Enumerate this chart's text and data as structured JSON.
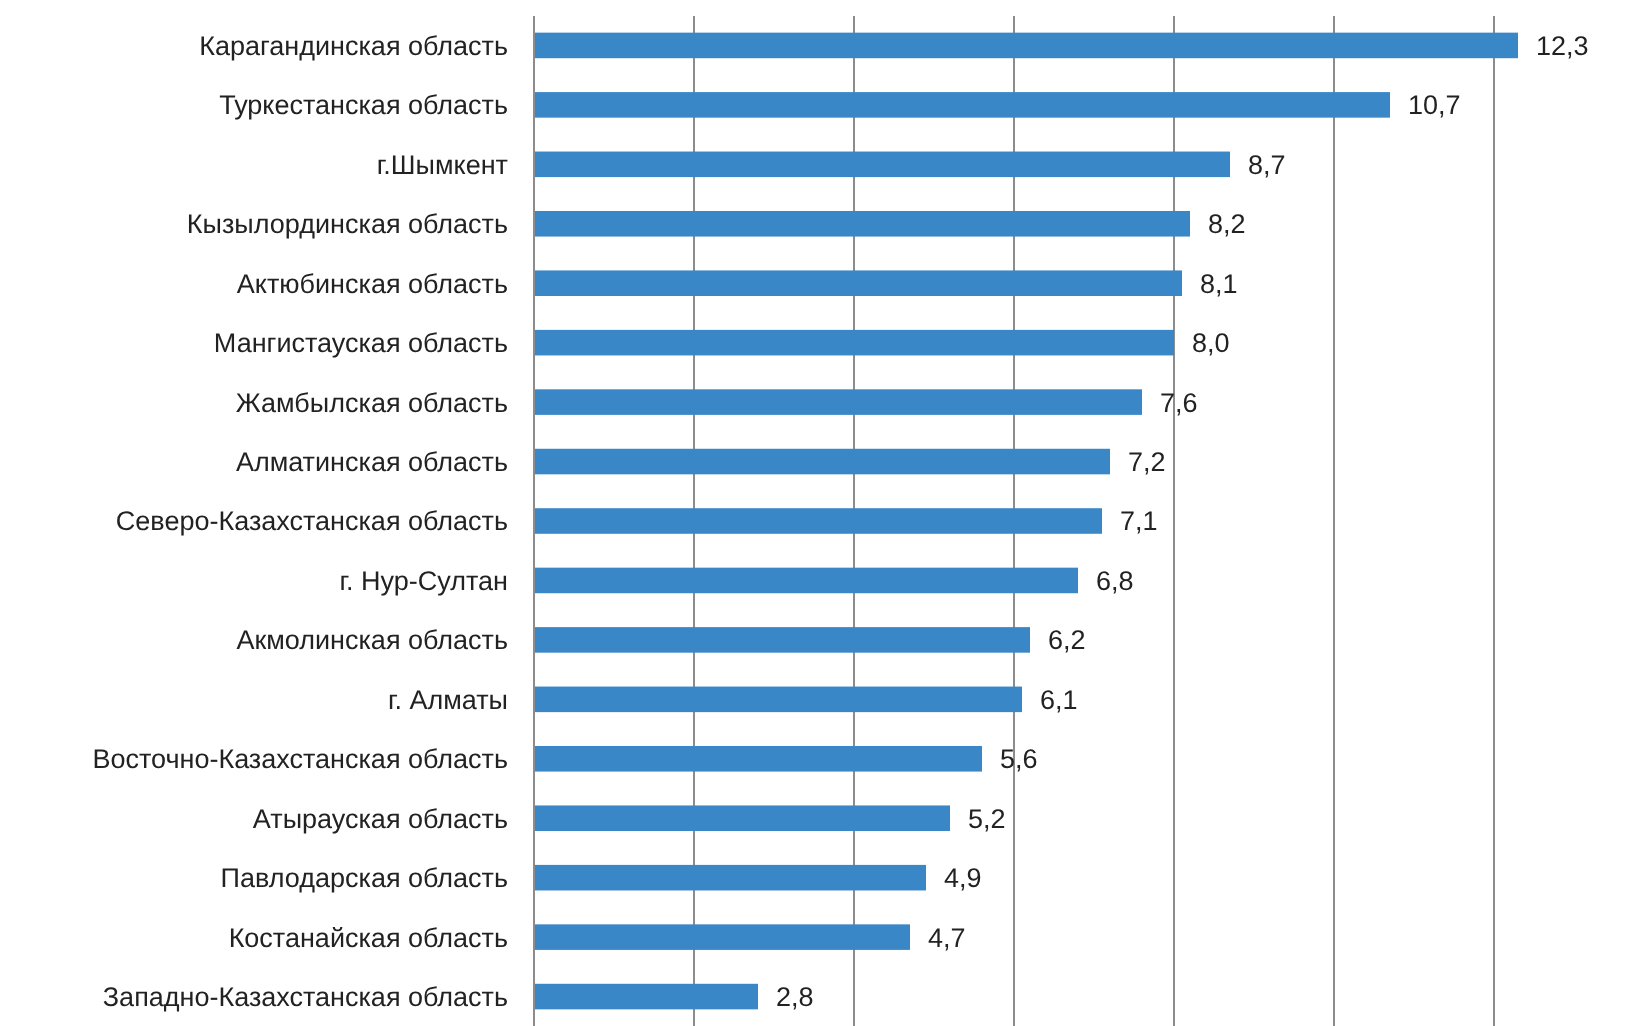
{
  "chart_data": {
    "type": "bar",
    "orientation": "horizontal",
    "categories": [
      "Карагандинская область",
      "Туркестанская область",
      "г.Шымкент",
      "Кызылординская область",
      "Актюбинская область",
      "Мангистауская область",
      "Жамбылская область",
      "Алматинская область",
      "Северо-Казахстанская область",
      "г. Нур-Султан",
      "Акмолинская область",
      "г. Алматы",
      "Восточно-Казахстанская область",
      "Атырауская область",
      "Павлодарская область",
      "Костанайская область",
      "Западно-Казахстанская область"
    ],
    "values": [
      12.3,
      10.7,
      8.7,
      8.2,
      8.1,
      8.0,
      7.6,
      7.2,
      7.1,
      6.8,
      6.2,
      6.1,
      5.6,
      5.2,
      4.9,
      4.7,
      2.8
    ],
    "value_labels": [
      "12,3",
      "10,7",
      "8,7",
      "8,2",
      "8,1",
      "8,0",
      "7,6",
      "7,2",
      "7,1",
      "6,8",
      "6,2",
      "6,1",
      "5,6",
      "5,2",
      "4,9",
      "4,7",
      "2,8"
    ],
    "color": "#3a87c8",
    "xticks": [
      {
        "value": 0,
        "label": null
      },
      {
        "value": 2,
        "label": null
      },
      {
        "value": 4,
        "label": null
      },
      {
        "value": 6,
        "label": null
      },
      {
        "value": 8,
        "label": null
      },
      {
        "value": 10,
        "label": null
      },
      {
        "value": 12,
        "label": null
      }
    ],
    "tick_labels": "y",
    "grid": "x"
  }
}
